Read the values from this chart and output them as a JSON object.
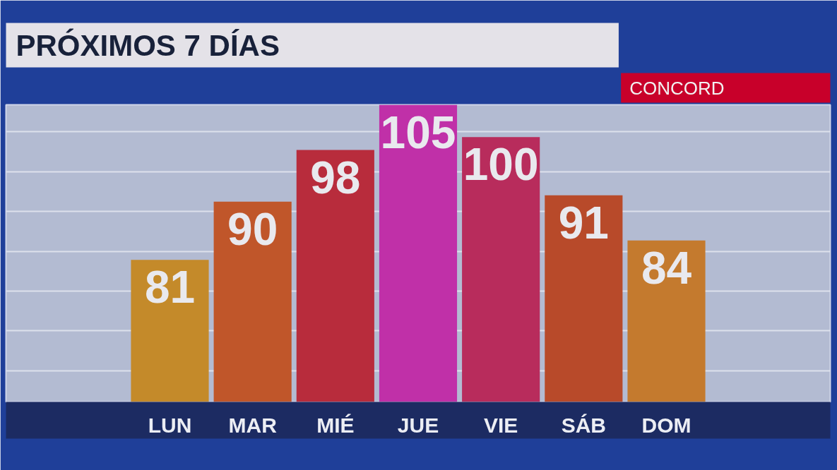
{
  "chart_data": {
    "type": "bar",
    "title": "PRÓXIMOS 7 DÍAS",
    "subtitle": "CONCORD",
    "categories": [
      "LUN",
      "MAR",
      "MIÉ",
      "JUE",
      "VIE",
      "SÁB",
      "DOM"
    ],
    "values": [
      81,
      90,
      98,
      105,
      100,
      91,
      84
    ],
    "colors": [
      "#c48a2a",
      "#c0562a",
      "#b82c3c",
      "#c030a8",
      "#b82c5c",
      "#b84a2a",
      "#c47a2e"
    ],
    "ylim": [
      59,
      105
    ],
    "yticks": [
      {
        "value": 63.8,
        "label": null
      },
      {
        "value": 70.0,
        "label": null
      },
      {
        "value": 76.1,
        "label": null
      },
      {
        "value": 82.3,
        "label": null
      },
      {
        "value": 88.5,
        "label": null
      },
      {
        "value": 94.6,
        "label": null
      },
      {
        "value": 100.8,
        "label": null
      }
    ],
    "grid": "y",
    "tick_labels": "x",
    "data_labels": true
  }
}
